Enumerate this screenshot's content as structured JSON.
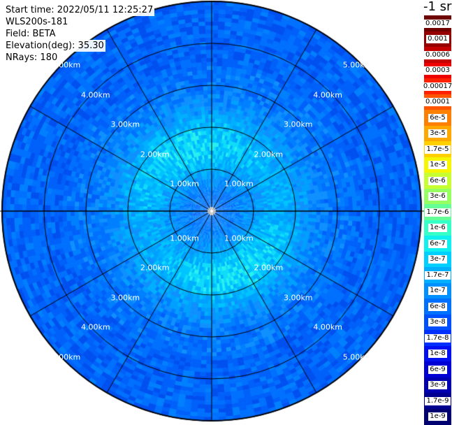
{
  "info": {
    "start_time": "Start time: 2022/05/11 12:25:27",
    "instrument": "WLS200s-181",
    "field": "Field: BETA",
    "elevation": "Elevation(deg): 35.30",
    "nrays": "NRays: 180"
  },
  "colorbar": {
    "units": "-1 sr",
    "labels": [
      "0.0017",
      "0.001",
      "0.0006",
      "0.0003",
      "0.00017",
      "0.0001",
      "6e-5",
      "3e-5",
      "1.7e-5",
      "1e-5",
      "6e-6",
      "3e-6",
      "1.7e-6",
      "1e-6",
      "6e-7",
      "3e-7",
      "1.7e-7",
      "1e-7",
      "6e-8",
      "3e-8",
      "1.7e-8",
      "1e-8",
      "6e-9",
      "3e-9",
      "1.7e-9",
      "1e-9"
    ],
    "colors": [
      "#6e0000",
      "#950000",
      "#c40000",
      "#ef0000",
      "#ff2000",
      "#ff5500",
      "#ff8000",
      "#ffa800",
      "#ffd000",
      "#f6f600",
      "#c8ff30",
      "#96ff62",
      "#64ff96",
      "#36ffc8",
      "#10f0ee",
      "#00d0ff",
      "#00b0ff",
      "#0090ff",
      "#0070ff",
      "#0050ff",
      "#0030ff",
      "#0010f0",
      "#0000d4",
      "#0000b0",
      "#000090",
      "#000070"
    ]
  },
  "ring_labels": [
    "1.00km",
    "2.00km",
    "3.00km",
    "4.00km",
    "5.00km"
  ],
  "chart_data": {
    "type": "heatmap",
    "projection": "polar PPI",
    "field": "BETA",
    "ranges_km": [
      1,
      2,
      3,
      4,
      5
    ],
    "max_range_km": 5,
    "azimuth_gridlines_deg": [
      0,
      30,
      60,
      90,
      120,
      150,
      180,
      210,
      240,
      270,
      300,
      330
    ],
    "nrays": 180,
    "value_range": [
      "1e-9",
      "0.0017"
    ],
    "typical_values": "mostly 1e-8 to 6e-8, higher (1.7e-7 to 3e-7) near 1-2 km"
  }
}
